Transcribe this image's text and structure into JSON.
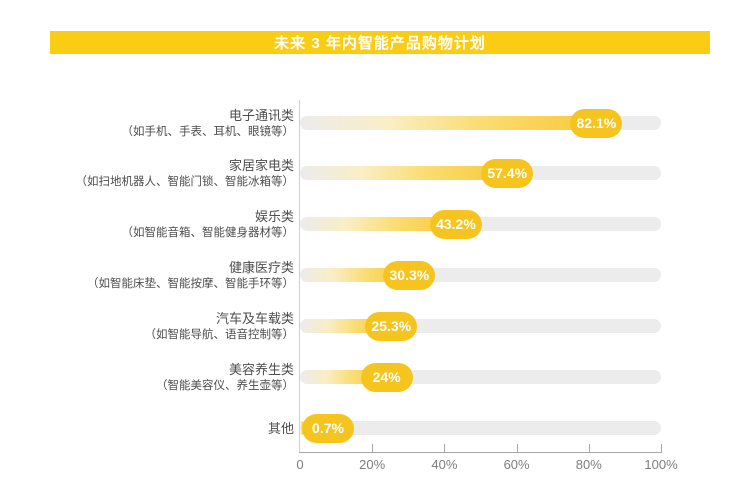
{
  "title": "未来 3 年内智能产品购物计划",
  "chart_data": {
    "type": "bar",
    "orientation": "horizontal",
    "title": "未来 3 年内智能产品购物计划",
    "categories": [
      {
        "label": "电子通讯类",
        "sublabel": "（如手机、手表、耳机、眼镜等）",
        "value": 82.1,
        "display": "82.1%"
      },
      {
        "label": "家居家电类",
        "sublabel": "（如扫地机器人、智能门锁、智能冰箱等）",
        "value": 57.4,
        "display": "57.4%"
      },
      {
        "label": "娱乐类",
        "sublabel": "（如智能音箱、智能健身器材等）",
        "value": 43.2,
        "display": "43.2%"
      },
      {
        "label": "健康医疗类",
        "sublabel": "（如智能床垫、智能按摩、智能手环等）",
        "value": 30.3,
        "display": "30.3%"
      },
      {
        "label": "汽车及车载类",
        "sublabel": "（如智能导航、语音控制等）",
        "value": 25.3,
        "display": "25.3%"
      },
      {
        "label": "美容养生类",
        "sublabel": "（智能美容仪、养生壶等）",
        "value": 24,
        "display": "24%"
      },
      {
        "label": "其他",
        "sublabel": "",
        "value": 0.7,
        "display": "0.7%"
      }
    ],
    "x_axis": {
      "min": 0,
      "max": 100,
      "ticks": [
        "0",
        "20%",
        "40%",
        "60%",
        "80%",
        "100%"
      ]
    },
    "grid": false,
    "legend": false
  },
  "colors": {
    "banner_bg": "#FACC14",
    "banner_text": "#FFFFFF",
    "bar_fill_end": "#F8C93A",
    "badge_bg": "#F6C41F",
    "badge_text": "#FFFFFF",
    "track": "#ECECEC",
    "label_text": "#4D4D4D",
    "axis_line": "#A8A8A8",
    "tick_text": "#7D7D7D"
  }
}
